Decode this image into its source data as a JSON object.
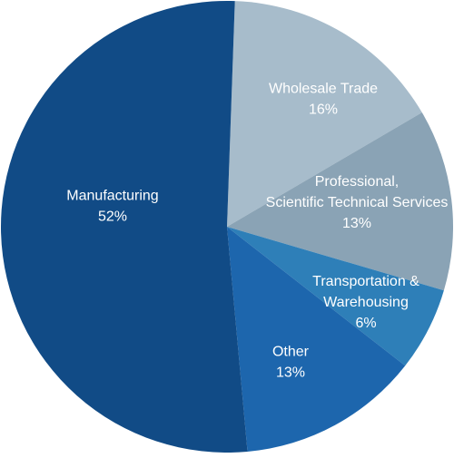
{
  "chart_data": {
    "type": "pie",
    "slices": [
      {
        "label_lines": [
          "Wholesale Trade"
        ],
        "value_label": "16%",
        "value": 16,
        "color": "#a7bccb"
      },
      {
        "label_lines": [
          "Professional,",
          "Scientific Technical Services"
        ],
        "value_label": "13%",
        "value": 13,
        "color": "#8aa3b5"
      },
      {
        "label_lines": [
          "Transportation &",
          "Warehousing"
        ],
        "value_label": "6%",
        "value": 6,
        "color": "#2e7fb8"
      },
      {
        "label_lines": [
          "Other"
        ],
        "value_label": "13%",
        "value": 13,
        "color": "#1d66ad"
      },
      {
        "label_lines": [
          "Manufacturing"
        ],
        "value_label": "52%",
        "value": 52,
        "color": "#114b86"
      }
    ]
  }
}
